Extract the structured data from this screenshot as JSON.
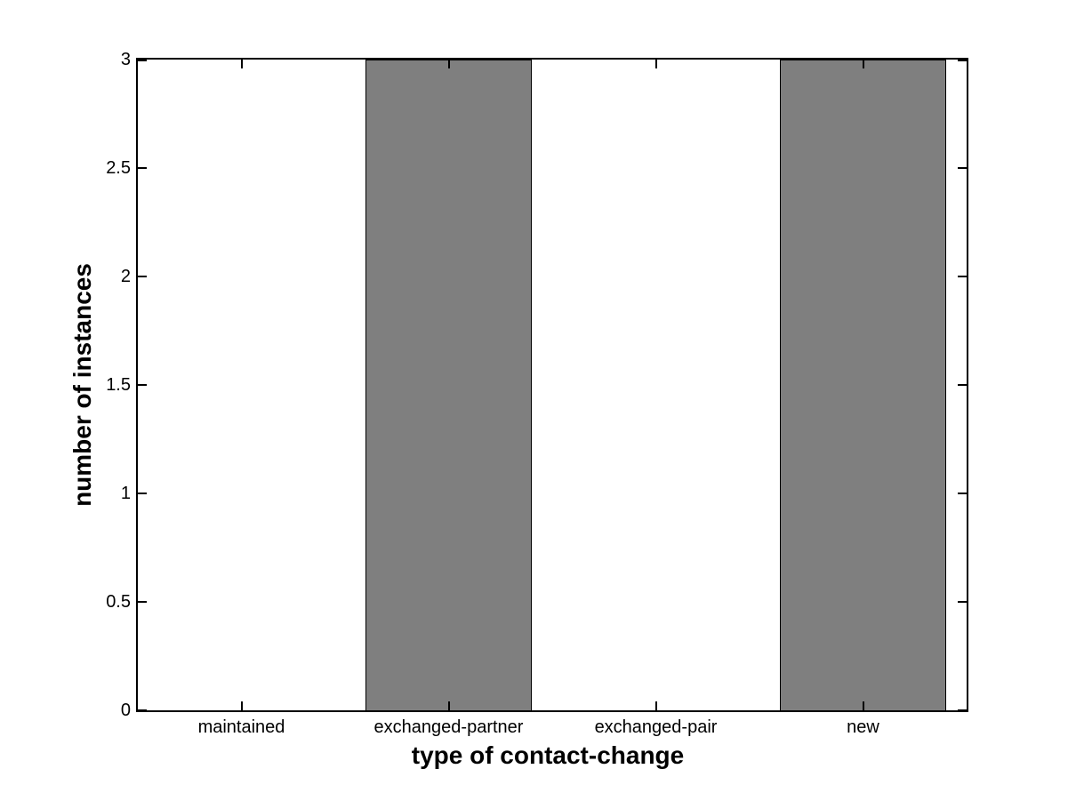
{
  "figure": {
    "background": "#ffffff"
  },
  "chart_data": {
    "type": "bar",
    "categories": [
      "maintained",
      "exchanged-partner",
      "exchanged-pair",
      "new"
    ],
    "values": [
      0,
      3,
      0,
      3
    ],
    "xlabel": "type of contact-change",
    "ylabel": "number of instances",
    "ylim": [
      0,
      3
    ],
    "yticks": [
      0,
      0.5,
      1,
      1.5,
      2,
      2.5,
      3
    ],
    "bar_width_fraction": 0.8,
    "bar_color": "#7f7f7f",
    "bar_edge_color": "#000000",
    "axis_color": "#000000",
    "text_color": "#000000",
    "grid": false,
    "legend": null,
    "tick_direction": "in",
    "box": true
  }
}
